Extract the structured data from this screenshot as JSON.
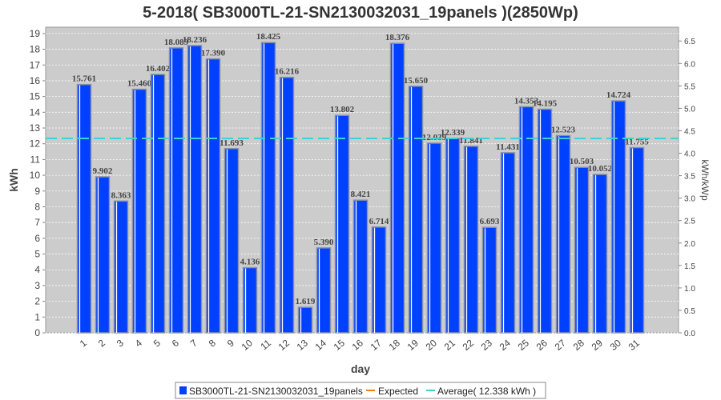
{
  "chart_data": {
    "type": "bar",
    "title": "5-2018( SB3000TL-21-SN2130032031_19panels )(2850Wp)",
    "xlabel": "day",
    "ylabel": "kWh",
    "ylabel_right": "kWh/kWp",
    "ylim": [
      0,
      19.4
    ],
    "ylim_right": [
      0,
      6.807
    ],
    "grid": true,
    "categories": [
      "1",
      "2",
      "3",
      "4",
      "5",
      "6",
      "7",
      "8",
      "9",
      "10",
      "11",
      "12",
      "13",
      "14",
      "15",
      "16",
      "17",
      "18",
      "19",
      "20",
      "21",
      "22",
      "23",
      "24",
      "25",
      "26",
      "27",
      "28",
      "29",
      "30",
      "31"
    ],
    "series": [
      {
        "name": "SB3000TL-21-SN2130032031_19panels",
        "color": "#0040ff",
        "values": [
          15.761,
          9.902,
          8.363,
          15.46,
          16.402,
          18.089,
          18.236,
          17.39,
          11.693,
          4.136,
          18.425,
          16.216,
          1.619,
          5.39,
          13.802,
          8.421,
          6.714,
          18.376,
          15.65,
          12.039,
          12.339,
          11.841,
          6.693,
          11.431,
          14.353,
          14.195,
          12.523,
          10.503,
          10.052,
          14.724,
          11.755
        ],
        "labels": [
          "15.761",
          "9.902",
          "8.363",
          "15.460",
          "16.402",
          "18.089",
          "18.236",
          "17.390",
          "11.693",
          "4.136",
          "18.425",
          "16.216",
          "1.619",
          "5.390",
          "13.802",
          "8.421",
          "6.714",
          "18.376",
          "15.650",
          "12.039",
          "12.339",
          "11.841",
          "6.693",
          "11.431",
          "14.353",
          "14.195",
          "12.523",
          "10.503",
          "10.052",
          "14.724",
          "11.755"
        ]
      },
      {
        "name": "Expected",
        "color": "#ff8000"
      },
      {
        "name": "Average( 12.338 kWh )",
        "color": "#40d0d0",
        "value": 12.338
      }
    ],
    "yticks": [
      "0",
      "1",
      "2",
      "3",
      "4",
      "5",
      "6",
      "7",
      "8",
      "9",
      "10",
      "11",
      "12",
      "13",
      "14",
      "15",
      "16",
      "17",
      "18",
      "19"
    ],
    "yticks_right": [
      "0.0",
      "0.5",
      "1.0",
      "1.5",
      "2.0",
      "2.5",
      "3.0",
      "3.5",
      "4.0",
      "4.5",
      "5.0",
      "5.5",
      "6.0",
      "6.5"
    ],
    "legend_position": "bottom"
  }
}
